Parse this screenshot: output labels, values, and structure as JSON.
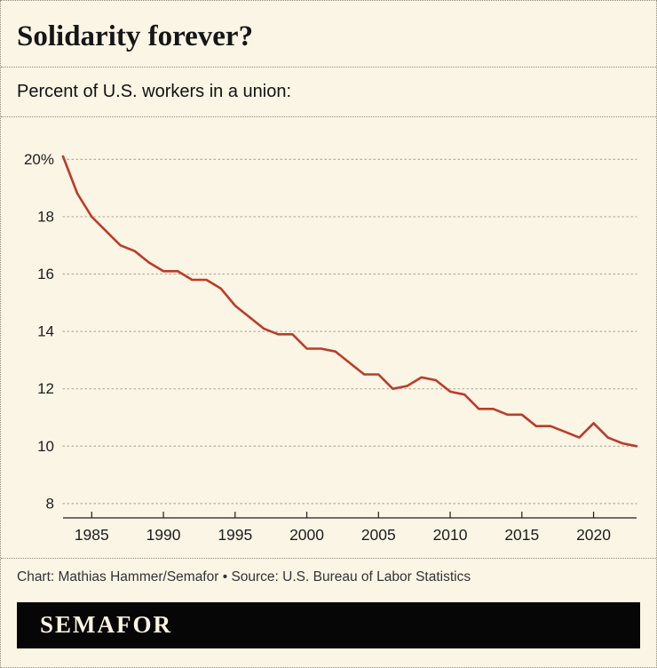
{
  "page": {
    "title": "Solidarity forever?",
    "subtitle": "Percent of U.S. workers in a union:",
    "footer_credit": "Chart: Mathias Hammer/Semafor • Source: U.S. Bureau of Labor Statistics",
    "brand": "SEMAFOR"
  },
  "colors": {
    "background": "#fbf5e6",
    "line": "#bd3b27",
    "grid": "#b3ac97",
    "text": "#1a1a1a",
    "banner_bg": "#060606",
    "banner_text": "#faf4e3"
  },
  "chart_data": {
    "type": "line",
    "title": "Solidarity forever?",
    "subtitle": "Percent of U.S. workers in a union:",
    "xlabel": "",
    "ylabel": "Percent of U.S. workers in a union",
    "x": [
      1983,
      1984,
      1985,
      1986,
      1987,
      1988,
      1989,
      1990,
      1991,
      1992,
      1993,
      1994,
      1995,
      1996,
      1997,
      1998,
      1999,
      2000,
      2001,
      2002,
      2003,
      2004,
      2005,
      2006,
      2007,
      2008,
      2009,
      2010,
      2011,
      2012,
      2013,
      2014,
      2015,
      2016,
      2017,
      2018,
      2019,
      2020,
      2021,
      2022,
      2023
    ],
    "values": [
      20.1,
      18.8,
      18.0,
      17.5,
      17.0,
      16.8,
      16.4,
      16.1,
      16.1,
      15.8,
      15.8,
      15.5,
      14.9,
      14.5,
      14.1,
      13.9,
      13.9,
      13.4,
      13.4,
      13.3,
      12.9,
      12.5,
      12.5,
      12.0,
      12.1,
      12.4,
      12.3,
      11.9,
      11.8,
      11.3,
      11.3,
      11.1,
      11.1,
      10.7,
      10.7,
      10.5,
      10.3,
      10.8,
      10.3,
      10.1,
      10.0
    ],
    "ylim": [
      7.5,
      20.6
    ],
    "yticks": [
      8,
      10,
      12,
      14,
      16,
      18,
      20
    ],
    "ytick_labels": [
      "8",
      "10",
      "12",
      "14",
      "16",
      "18",
      "20%"
    ],
    "xticks": [
      1985,
      1990,
      1995,
      2000,
      2005,
      2010,
      2015,
      2020
    ],
    "grid": "horizontal-dotted",
    "legend": "none",
    "line_color": "#bd3b27",
    "source": "U.S. Bureau of Labor Statistics",
    "credit": "Mathias Hammer/Semafor"
  }
}
